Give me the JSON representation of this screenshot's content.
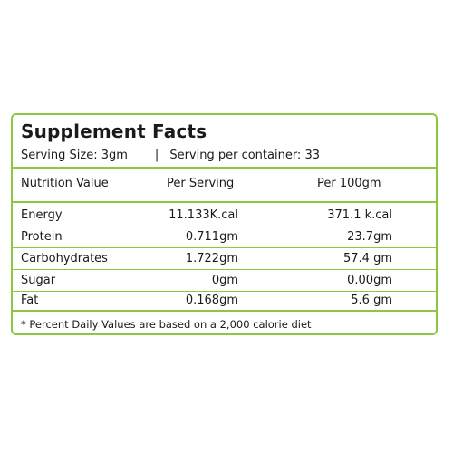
{
  "label": {
    "title": "Supplement Facts",
    "serving_size": "Serving Size: 3gm",
    "separator": "|",
    "servings_per_container": "Serving per container: 33",
    "columns": {
      "name": "Nutrition Value",
      "per_serving": "Per Serving",
      "per_100g": "Per 100gm"
    },
    "rows": [
      {
        "name": "Energy",
        "per_serving": "11.133K.cal",
        "per_100g": "371.1 k.cal"
      },
      {
        "name": "Protein",
        "per_serving": "0.711gm",
        "per_100g": "23.7gm"
      },
      {
        "name": "Carbohydrates",
        "per_serving": "1.722gm",
        "per_100g": "57.4 gm"
      },
      {
        "name": "Sugar",
        "per_serving": "0gm",
        "per_100g": "0.00gm"
      },
      {
        "name": "Fat",
        "per_serving": "0.168gm",
        "per_100g": "5.6 gm"
      }
    ],
    "footnote": "* Percent Daily Values are based on a 2,000 calorie diet",
    "border_color": "#8dc63f"
  }
}
